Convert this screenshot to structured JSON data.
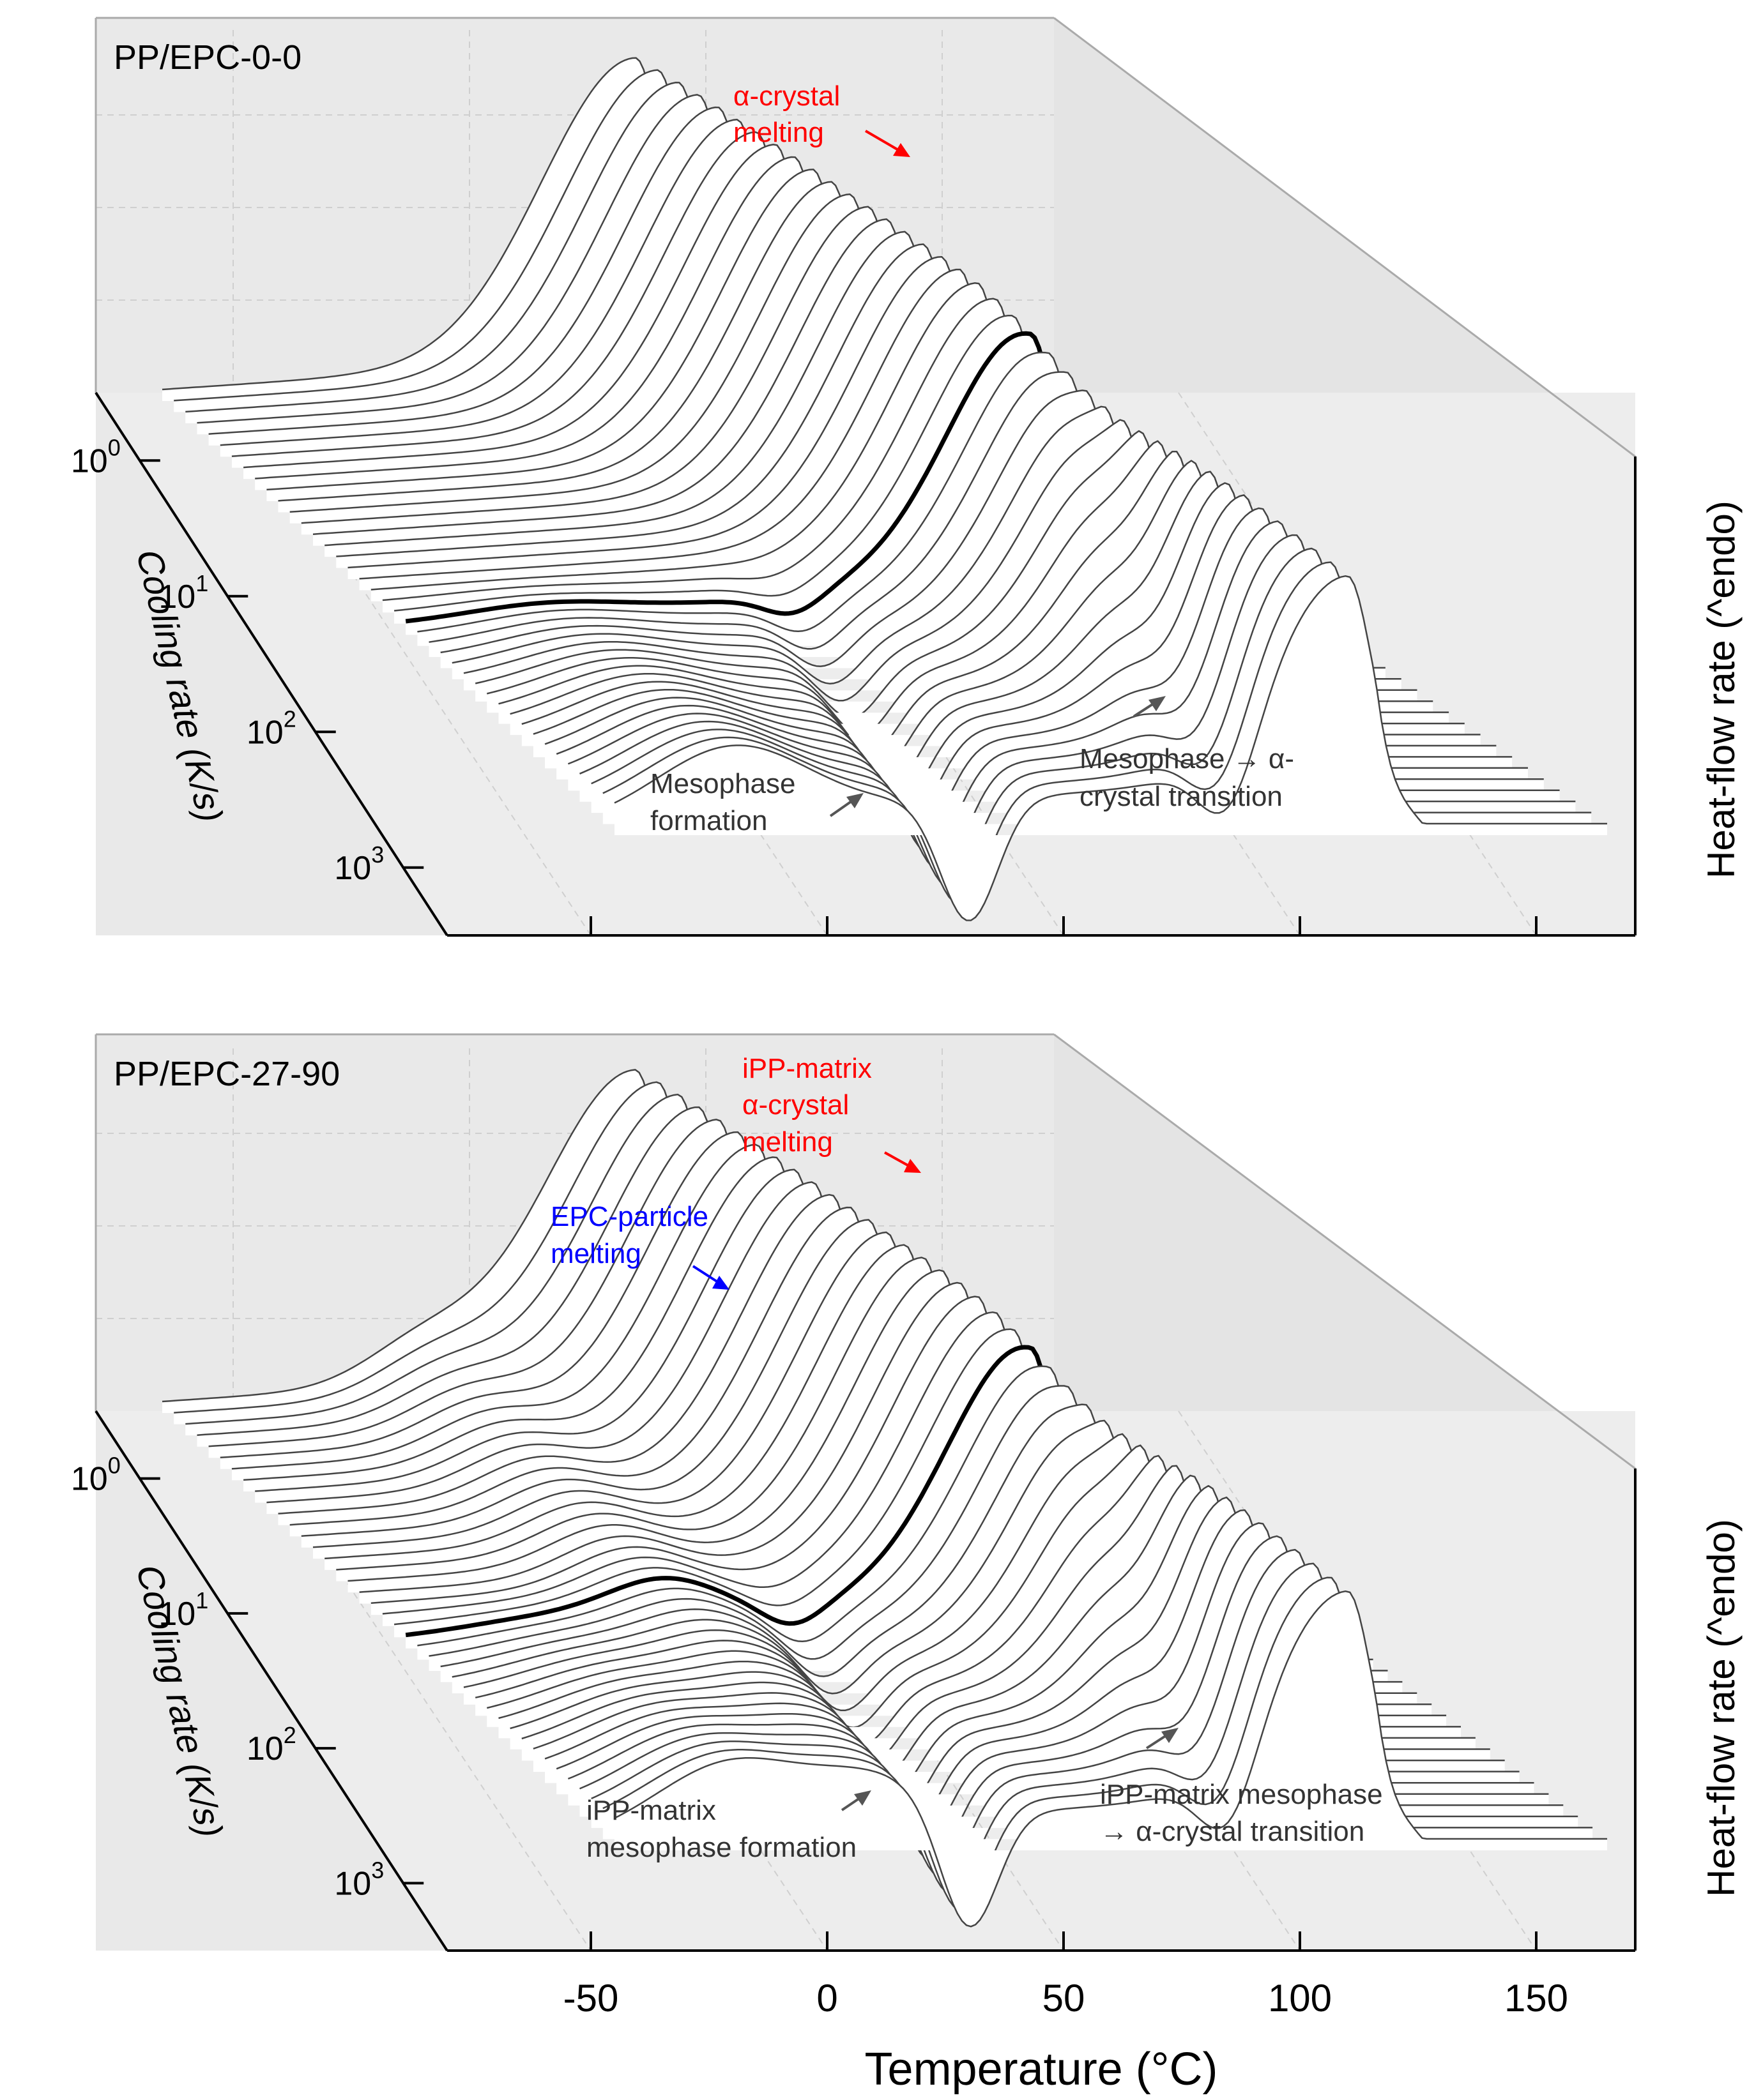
{
  "chart_data": [
    {
      "type": "waterfall-line",
      "title": "PP/EPC-0-0",
      "xlabel": "Temperature (°C)",
      "ylabel": "Cooling rate (K/s)",
      "zlabel": "Heat-flow rate (^endo)",
      "xticks": [
        "-50",
        "0",
        "50",
        "100",
        "150"
      ],
      "xlim": [
        -75,
        175
      ],
      "depth_ticks": [
        {
          "base": "10",
          "exp": "0"
        },
        {
          "base": "10",
          "exp": "1"
        },
        {
          "base": "10",
          "exp": "2"
        },
        {
          "base": "10",
          "exp": "3"
        }
      ],
      "depth_range_log": [
        -0.5,
        3.5
      ],
      "series_count": 40,
      "highlighted_curve_index": 21,
      "curve_model": {
        "start_temp_slow": -65,
        "start_temp_fast": -45,
        "end_temp_slow": 110,
        "end_temp_fast": 165,
        "melt_peak_temp_slow": 35,
        "melt_peak_temp_fast": 110,
        "meso_formation_temp": 25,
        "meso_to_alpha_temp": 80
      },
      "annotations": [
        {
          "text": [
            "α-crystal",
            "melting"
          ],
          "color": "#ff0000"
        },
        {
          "text": [
            "Mesophase",
            "formation"
          ],
          "color": "#333333"
        },
        {
          "text": [
            "Mesophase → α-",
            "crystal transition"
          ],
          "color": "#333333"
        }
      ]
    },
    {
      "type": "waterfall-line",
      "title": "PP/EPC-27-90",
      "xlabel": "Temperature (°C)",
      "ylabel": "Cooling rate (K/s)",
      "zlabel": "Heat-flow rate (^endo)",
      "xticks": [
        "-50",
        "0",
        "50",
        "100",
        "150"
      ],
      "xlim": [
        -75,
        175
      ],
      "depth_ticks": [
        {
          "base": "10",
          "exp": "0"
        },
        {
          "base": "10",
          "exp": "1"
        },
        {
          "base": "10",
          "exp": "2"
        },
        {
          "base": "10",
          "exp": "3"
        }
      ],
      "depth_range_log": [
        -0.5,
        3.5
      ],
      "series_count": 40,
      "highlighted_curve_index": 21,
      "curve_model": {
        "start_temp_slow": -65,
        "start_temp_fast": -45,
        "end_temp_slow": 120,
        "end_temp_fast": 165,
        "melt_peak_temp_slow": 35,
        "melt_peak_temp_fast": 110,
        "epc_melt_temp": -10,
        "meso_formation_temp": 25,
        "meso_to_alpha_temp": 80
      },
      "annotations": [
        {
          "text": [
            "iPP-matrix",
            "α-crystal",
            "melting"
          ],
          "color": "#ff0000"
        },
        {
          "text": [
            "EPC-particle",
            "melting"
          ],
          "color": "#0000ff"
        },
        {
          "text": [
            "iPP-matrix",
            "mesophase formation"
          ],
          "color": "#333333"
        },
        {
          "text": [
            "iPP-matrix mesophase",
            "→ α-crystal transition"
          ],
          "color": "#333333"
        }
      ]
    }
  ],
  "colors": {
    "wall": "#e9e9e9",
    "grid": "#c8c8c8",
    "curve": "#444444",
    "highlight": "#000000",
    "axis": "#000000"
  }
}
